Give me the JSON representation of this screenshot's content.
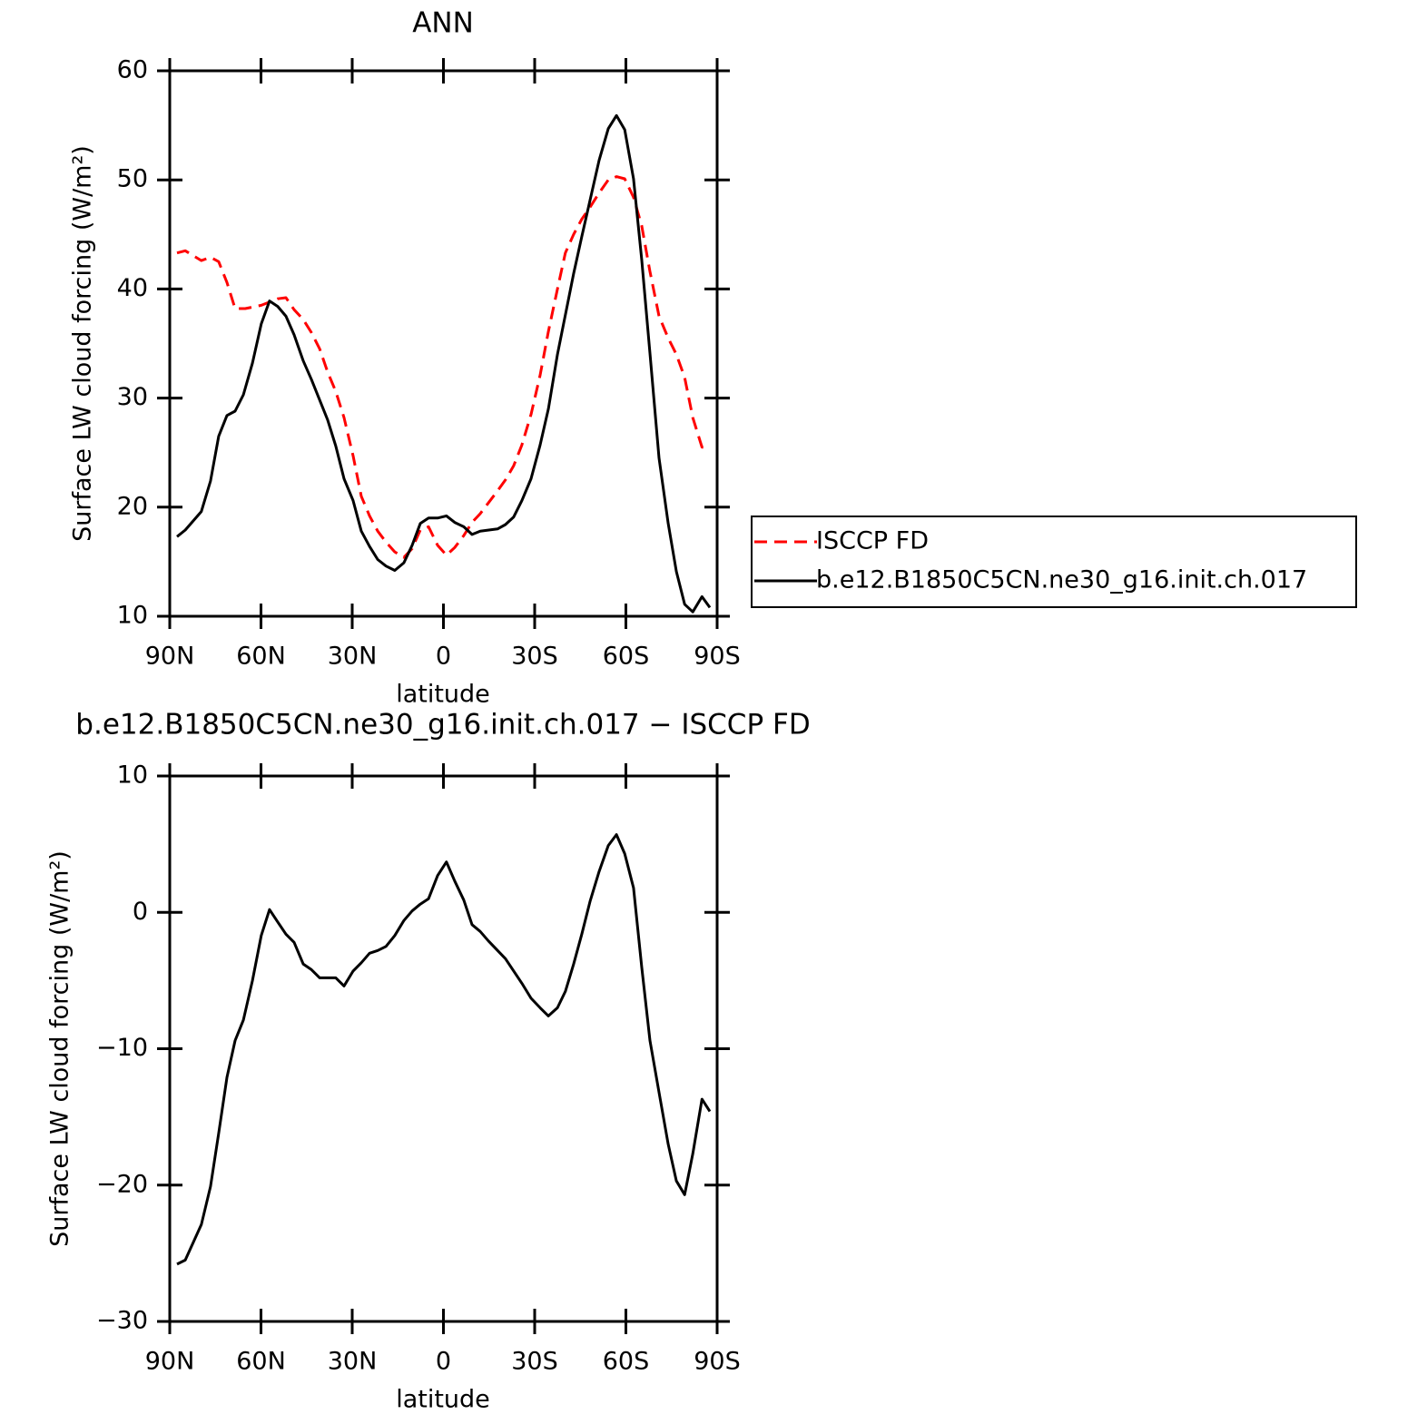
{
  "chart_data": [
    {
      "type": "line",
      "title": "ANN",
      "xlabel": "latitude",
      "ylabel": "Surface LW cloud forcing (W/m²)",
      "xlim": [
        90,
        -90
      ],
      "ylim": [
        10,
        60
      ],
      "xticks": [
        {
          "value": 90,
          "label": "90N"
        },
        {
          "value": 60,
          "label": "60N"
        },
        {
          "value": 30,
          "label": "30N"
        },
        0,
        {
          "value": -30,
          "label": "30S"
        },
        {
          "value": -60,
          "label": "60S"
        },
        {
          "value": -90,
          "label": "90S"
        }
      ],
      "yticks": [
        10,
        20,
        30,
        40,
        50,
        60
      ],
      "legend": "right",
      "series": [
        {
          "name": "ISCCP FD",
          "color": "#ff0000",
          "dashed": true,
          "x": [
            87.6,
            84.9,
            79.6,
            76.6,
            73.9,
            71.2,
            68.5,
            65.2,
            59.9,
            54.5,
            51.8,
            49.1,
            46.1,
            43.4,
            40.7,
            38.1,
            35.4,
            32.7,
            29.7,
            27.0,
            24.3,
            21.6,
            18.9,
            16.0,
            13.0,
            10.3,
            7.6,
            4.9,
            1.9,
            -1.0,
            -3.7,
            -6.7,
            -9.4,
            -12.1,
            -17.8,
            -20.4,
            -23.1,
            -25.8,
            -28.8,
            -31.8,
            -34.5,
            -37.5,
            -40.1,
            -42.8,
            -45.5,
            -48.2,
            -51.2,
            -54.2,
            -56.9,
            -59.6,
            -62.5,
            -65.2,
            -67.9,
            -70.9,
            -73.9,
            -76.6,
            -79.3,
            -82.0,
            -85.0,
            -87.6
          ],
          "values": [
            43.3,
            43.5,
            42.6,
            42.9,
            42.5,
            40.6,
            38.2,
            38.2,
            38.5,
            39.1,
            39.2,
            38.1,
            37.2,
            36.0,
            34.5,
            32.4,
            30.6,
            28.2,
            24.7,
            21.0,
            19.2,
            17.8,
            16.8,
            15.9,
            15.4,
            16.2,
            17.9,
            18.2,
            16.5,
            15.6,
            16.3,
            17.4,
            18.6,
            19.4,
            21.5,
            22.5,
            23.8,
            25.7,
            28.5,
            32.1,
            36.1,
            40.0,
            43.3,
            45.0,
            46.4,
            47.5,
            48.8,
            50.0,
            50.3,
            50.1,
            48.4,
            45.8,
            41.6,
            37.5,
            35.5,
            34.0,
            31.9,
            28.2,
            25.5,
            25.5
          ]
        },
        {
          "name": "b.e12.B1850C5CN.ne30_g16.init.ch.017",
          "color": "#000000",
          "dashed": false,
          "x": [
            87.6,
            84.9,
            79.6,
            76.6,
            73.9,
            71.2,
            68.5,
            65.8,
            62.8,
            59.9,
            57.2,
            54.5,
            51.8,
            49.1,
            46.1,
            43.4,
            38.1,
            35.4,
            32.7,
            29.7,
            27.0,
            24.3,
            21.6,
            18.9,
            16.0,
            13.0,
            10.3,
            7.6,
            4.9,
            1.9,
            -1.0,
            -3.7,
            -6.7,
            -9.4,
            -12.1,
            -17.8,
            -20.4,
            -23.1,
            -25.8,
            -28.8,
            -31.8,
            -34.5,
            -37.5,
            -42.8,
            -45.5,
            -51.2,
            -54.2,
            -56.9,
            -59.6,
            -62.5,
            -65.2,
            -67.9,
            -70.9,
            -73.9,
            -76.6,
            -79.3,
            -82.0,
            -85.0,
            -87.6
          ],
          "values": [
            17.3,
            17.9,
            19.6,
            22.4,
            26.5,
            28.4,
            28.8,
            30.3,
            33.2,
            36.8,
            38.9,
            38.4,
            37.5,
            35.8,
            33.4,
            31.7,
            28.0,
            25.6,
            22.6,
            20.6,
            17.8,
            16.4,
            15.2,
            14.6,
            14.2,
            14.9,
            16.5,
            18.5,
            19.0,
            19.0,
            19.2,
            18.6,
            18.2,
            17.5,
            17.8,
            18.0,
            18.4,
            19.1,
            20.6,
            22.6,
            25.7,
            29.0,
            34.0,
            41.4,
            44.8,
            51.8,
            54.7,
            55.9,
            54.6,
            50.1,
            42.7,
            34.1,
            24.5,
            18.5,
            14.1,
            11.1,
            10.4,
            11.8,
            10.8
          ]
        }
      ]
    },
    {
      "type": "line",
      "title": "b.e12.B1850C5CN.ne30_g16.init.ch.017 − ISCCP FD",
      "xlabel": "latitude",
      "ylabel": "Surface LW cloud forcing (W/m²)",
      "xlim": [
        90,
        -90
      ],
      "ylim": [
        -30,
        10
      ],
      "xticks": [
        {
          "value": 90,
          "label": "90N"
        },
        {
          "value": 60,
          "label": "60N"
        },
        {
          "value": 30,
          "label": "30N"
        },
        0,
        {
          "value": -30,
          "label": "30S"
        },
        {
          "value": -60,
          "label": "60S"
        },
        {
          "value": -90,
          "label": "90S"
        }
      ],
      "yticks": [
        {
          "value": -30,
          "label": "−30"
        },
        {
          "value": -20,
          "label": "−20"
        },
        {
          "value": -10,
          "label": "−10"
        },
        0,
        10
      ],
      "series": [
        {
          "color": "#000000",
          "dashed": false,
          "x": [
            87.6,
            84.9,
            79.6,
            76.6,
            73.9,
            71.2,
            68.5,
            65.8,
            62.8,
            59.9,
            57.2,
            54.5,
            51.8,
            49.1,
            46.1,
            43.4,
            40.7,
            35.4,
            32.7,
            29.7,
            27.0,
            24.3,
            21.6,
            18.9,
            16.0,
            13.0,
            10.3,
            7.6,
            4.9,
            1.9,
            -1.0,
            -3.7,
            -6.7,
            -9.4,
            -12.1,
            -14.8,
            -20.4,
            -23.1,
            -25.8,
            -28.8,
            -31.8,
            -34.5,
            -37.5,
            -40.1,
            -42.8,
            -45.5,
            -48.2,
            -51.2,
            -54.2,
            -56.9,
            -59.6,
            -62.5,
            -65.2,
            -67.9,
            -70.9,
            -73.9,
            -76.6,
            -79.3,
            -82.0,
            -85.0,
            -87.6
          ],
          "values": [
            -25.8,
            -25.5,
            -22.9,
            -20.1,
            -16.2,
            -12.1,
            -9.4,
            -7.9,
            -5.0,
            -1.7,
            0.2,
            -0.7,
            -1.6,
            -2.2,
            -3.8,
            -4.2,
            -4.8,
            -4.8,
            -5.4,
            -4.3,
            -3.7,
            -3.0,
            -2.8,
            -2.5,
            -1.7,
            -0.6,
            0.1,
            0.6,
            1.0,
            2.7,
            3.7,
            2.3,
            0.9,
            -0.9,
            -1.4,
            -2.1,
            -3.4,
            -4.3,
            -5.2,
            -6.3,
            -7.0,
            -7.6,
            -7.0,
            -5.8,
            -3.8,
            -1.6,
            0.8,
            3.0,
            4.9,
            5.7,
            4.3,
            1.8,
            -4.0,
            -9.4,
            -13.2,
            -17.0,
            -19.7,
            -20.7,
            -17.7,
            -13.7,
            -14.6
          ]
        }
      ]
    }
  ]
}
